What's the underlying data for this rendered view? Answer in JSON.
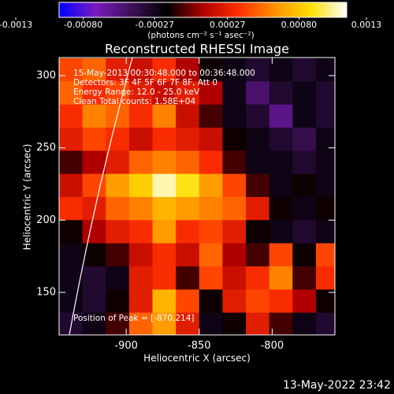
{
  "chart_data": {
    "type": "heatmap",
    "title": "Reconstructed RHESSI Image",
    "xlabel": "Heliocentric X (arcsec)",
    "ylabel": "Heliocentric Y (arcsec)",
    "xlim": [
      -946,
      -757
    ],
    "ylim": [
      120.6,
      312.5
    ],
    "xticks": [
      -900,
      -850,
      -800
    ],
    "yticks": [
      150,
      200,
      250,
      300
    ],
    "colorbar_label": "(photons cm⁻² s⁻¹ asec⁻²)",
    "zlim": [
      -0.0013,
      0.0013
    ],
    "zticks": [
      -0.0013,
      {
        "value": -0.0008,
        "label": "-0.00080"
      },
      -0.00027,
      0.00027,
      {
        "value": 0.0008,
        "label": "0.00080"
      },
      0.0013
    ],
    "colormap": [
      "#0000ff",
      "#7a1ac0",
      "#40105a",
      "#000000",
      "#b00000",
      "#ff3000",
      "#ff9000",
      "#ffe000",
      "#ffffff"
    ],
    "x": [
      -938,
      -922,
      -906,
      -890,
      -874,
      -858,
      -842,
      -826,
      -810,
      -794,
      -778,
      -762
    ],
    "y": [
      304,
      288,
      272,
      256,
      240,
      224,
      208,
      192,
      176,
      160,
      144,
      128
    ],
    "z": [
      [
        0.0004,
        0.0005,
        0.0002,
        0.0001,
        0.0003,
        0.0,
        -0.0003,
        -0.0004,
        -0.0005,
        -0.0004,
        -0.0005,
        -0.0004
      ],
      [
        0.0005,
        0.0003,
        0.0004,
        0.0002,
        0.0001,
        0.0002,
        0.0,
        -0.0004,
        -0.0007,
        -0.0005,
        -0.0004,
        -0.0005
      ],
      [
        0.0003,
        0.0006,
        0.0005,
        0.0003,
        0.0006,
        0.0001,
        -0.0002,
        -0.0004,
        -0.0005,
        -0.0008,
        -0.0004,
        -0.0005
      ],
      [
        0.0002,
        0.0004,
        0.0003,
        0.0001,
        0.0003,
        0.0002,
        0.0001,
        -0.0003,
        -0.0004,
        -0.0005,
        -0.0006,
        -0.0004
      ],
      [
        -0.0002,
        0.0,
        0.0002,
        0.0005,
        0.0006,
        0.0005,
        0.0003,
        -0.0002,
        -0.0004,
        -0.0004,
        -0.0005,
        -0.0004
      ],
      [
        0.0001,
        0.0004,
        0.0007,
        0.0009,
        0.0012,
        0.001,
        0.0007,
        0.0004,
        -0.0002,
        -0.0004,
        -0.0003,
        -0.0004
      ],
      [
        0.0003,
        0.0002,
        0.0005,
        0.0006,
        0.0008,
        0.0007,
        0.0006,
        0.0005,
        0.0002,
        -0.0003,
        -0.0004,
        -0.0003
      ],
      [
        -0.0003,
        0.0,
        0.0002,
        0.0003,
        0.0007,
        0.0003,
        0.0004,
        0.0002,
        -0.0003,
        -0.0004,
        -0.0005,
        -0.0004
      ],
      [
        -0.0004,
        -0.0003,
        -0.0002,
        0.0001,
        0.0003,
        0.0001,
        0.0005,
        0.0,
        -0.0002,
        0.0004,
        -0.0003,
        0.0004
      ],
      [
        -0.0004,
        -0.0005,
        -0.0004,
        0.0002,
        0.0003,
        -0.0002,
        0.0004,
        0.0001,
        0.0003,
        0.0006,
        -0.0002,
        0.0003
      ],
      [
        -0.0004,
        -0.0005,
        -0.0003,
        0.0002,
        0.0008,
        0.0004,
        -0.0003,
        0.0002,
        0.0004,
        0.0003,
        0.0,
        -0.0003
      ],
      [
        -0.0005,
        -0.0004,
        -0.0002,
        0.0005,
        0.0007,
        0.0002,
        -0.0004,
        -0.0003,
        0.0002,
        -0.0002,
        -0.0004,
        -0.0005
      ]
    ],
    "annotations": [
      "15-May-2013 00:30:48.000 to 00:36:48.000",
      "Detectors: 3F 4F 5F 6F 7F 8F, Att 0",
      "Energy Range: 12.0 - 25.0 keV",
      "Clean     Total counts: 1.58E+04"
    ],
    "peak_label": "Position of Peak = [-870,214]",
    "timestamp": "13-May-2022 23:42"
  }
}
